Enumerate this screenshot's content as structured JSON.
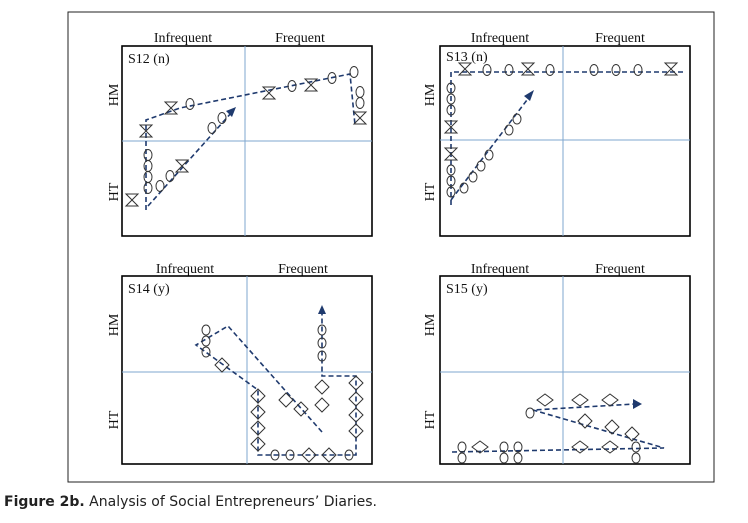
{
  "caption": {
    "label": "Figure 2b.",
    "text": "Analysis of Social Entrepreneurs’ Diaries."
  },
  "colors": {
    "path": "#1f3a6e",
    "divider": "#7fa7cf",
    "frame": "#000000",
    "marker": "#333333"
  },
  "columns": [
    "Infrequent",
    "Frequent"
  ],
  "rows": [
    "HM",
    "HT"
  ],
  "panels": [
    {
      "id": "S12",
      "title": "S12 (n)"
    },
    {
      "id": "S13",
      "title": "S13 (n)"
    },
    {
      "id": "S14",
      "title": "S14 (y)"
    },
    {
      "id": "S15",
      "title": "S15 (y)"
    }
  ]
}
